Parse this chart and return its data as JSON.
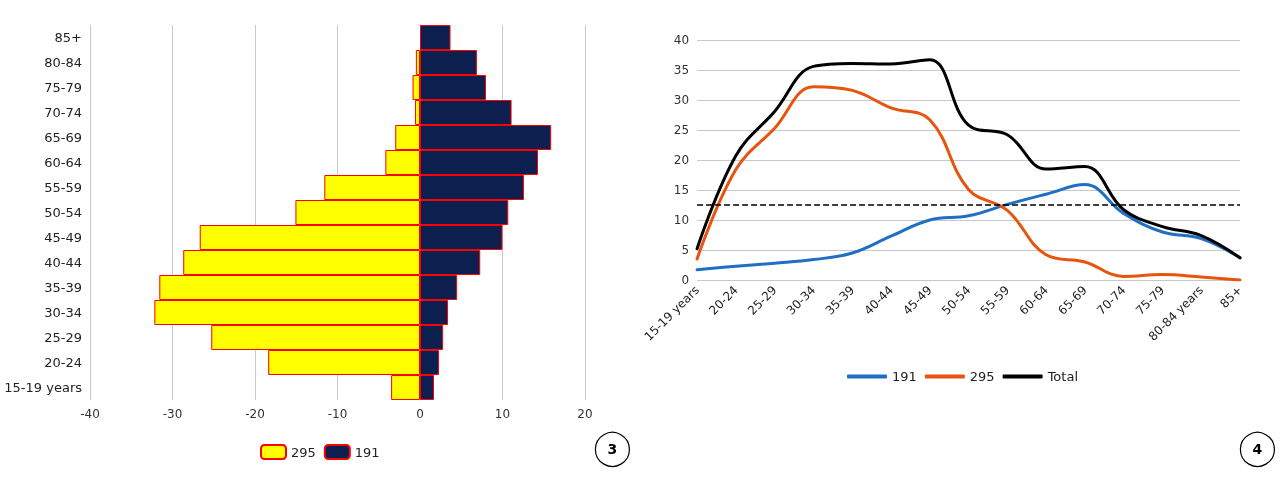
{
  "chart_data": [
    {
      "type": "bar",
      "orientation": "horizontal",
      "stacked": true,
      "categories": [
        "85+",
        "80-84",
        "75-79",
        "70-74",
        "65-69",
        "60-64",
        "55-59",
        "50-54",
        "45-49",
        "40-44",
        "35-39",
        "30-34",
        "25-29",
        "20-24",
        "15-19 years"
      ],
      "series": [
        {
          "name": "295",
          "color": "#ffff00",
          "values": [
            0,
            -0.5,
            -0.9,
            -0.6,
            -3.0,
            -4.2,
            -11.6,
            -15.1,
            -26.7,
            -28.7,
            -31.6,
            -32.2,
            -25.3,
            -18.4,
            -3.5
          ]
        },
        {
          "name": "191",
          "color": "#0d1f4f",
          "values": [
            3.7,
            6.9,
            8.0,
            11.1,
            15.9,
            14.3,
            12.6,
            10.7,
            10.0,
            7.3,
            4.5,
            3.4,
            2.8,
            2.3,
            1.7
          ]
        }
      ],
      "xlim": [
        -40,
        20
      ],
      "xticks": [
        -40,
        -30,
        -20,
        -10,
        0,
        10,
        20
      ],
      "grid": "x",
      "legend": "bottom left",
      "annotations": [
        "3"
      ]
    },
    {
      "type": "line",
      "categories": [
        "15-19 years",
        "20-24",
        "25-29",
        "30-34",
        "35-39",
        "40-44",
        "45-49",
        "50-54",
        "55-59",
        "60-64",
        "65-69",
        "70-74",
        "75-79",
        "80-84 years",
        "85+"
      ],
      "series": [
        {
          "name": "191",
          "color": "#1f6fc5",
          "values": [
            1.7,
            2.3,
            2.8,
            3.4,
            4.5,
            7.3,
            10.0,
            10.7,
            12.6,
            14.3,
            15.9,
            11.1,
            8.0,
            6.9,
            3.7
          ]
        },
        {
          "name": "295",
          "color": "#e8530e",
          "values": [
            3.5,
            18.4,
            25.3,
            32.2,
            31.6,
            28.7,
            26.7,
            15.1,
            11.6,
            4.2,
            3.0,
            0.6,
            0.9,
            0.5,
            0
          ]
        },
        {
          "name": "Total",
          "color": "#000000",
          "values": [
            5.2,
            20.7,
            28.1,
            35.6,
            36.1,
            36.0,
            36.7,
            25.8,
            24.2,
            18.5,
            18.9,
            11.7,
            8.9,
            7.4,
            3.7
          ]
        }
      ],
      "ref_lines": [
        {
          "axis": "y",
          "value": 12.5,
          "color": "#000000",
          "line_style": "dashed"
        }
      ],
      "ylim": [
        0,
        40
      ],
      "yticks": [
        0,
        5,
        10,
        15,
        20,
        25,
        30,
        35,
        40
      ],
      "grid": "y",
      "legend": "bottom",
      "marker": "none",
      "annotations": [
        "4"
      ]
    }
  ]
}
